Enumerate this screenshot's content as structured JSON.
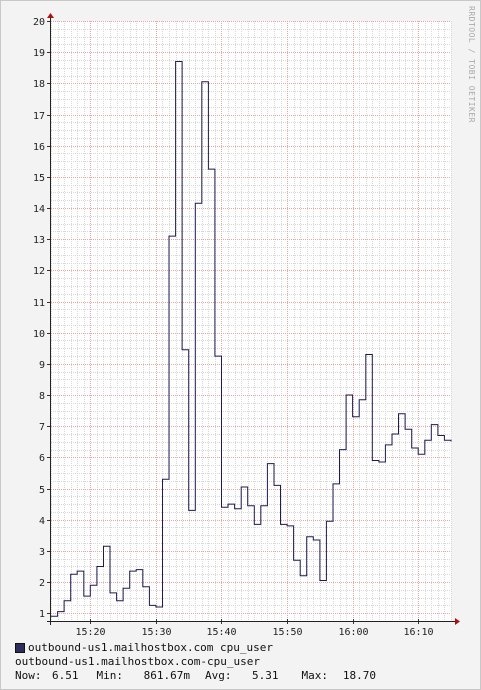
{
  "chart_data": {
    "type": "line",
    "title": "",
    "xlabel": "",
    "ylabel": "",
    "ylim": [
      0.75,
      20
    ],
    "yticks": [
      1,
      2,
      3,
      4,
      5,
      6,
      7,
      8,
      9,
      10,
      11,
      12,
      13,
      14,
      15,
      16,
      17,
      18,
      19,
      20
    ],
    "xlim": [
      "15:14",
      "16:15"
    ],
    "xticks": [
      {
        "t": "15:20",
        "label": "15:20"
      },
      {
        "t": "15:30",
        "label": "15:30"
      },
      {
        "t": "15:40",
        "label": "15:40"
      },
      {
        "t": "15:50",
        "label": "15:50"
      },
      {
        "t": "16:00",
        "label": "16:00"
      },
      {
        "t": "16:10",
        "label": "16:10"
      }
    ],
    "grid": true,
    "step": true,
    "line_color": "#1c1c50",
    "series": [
      {
        "name": "outbound-us1.mailhostbox.com cpu_user",
        "x": [
          "15:14",
          "15:15",
          "15:16",
          "15:17",
          "15:18",
          "15:19",
          "15:20",
          "15:21",
          "15:22",
          "15:23",
          "15:24",
          "15:25",
          "15:26",
          "15:27",
          "15:28",
          "15:29",
          "15:30",
          "15:31",
          "15:32",
          "15:33",
          "15:34",
          "15:35",
          "15:36",
          "15:37",
          "15:38",
          "15:39",
          "15:40",
          "15:41",
          "15:42",
          "15:43",
          "15:44",
          "15:45",
          "15:46",
          "15:47",
          "15:48",
          "15:49",
          "15:50",
          "15:51",
          "15:52",
          "15:53",
          "15:54",
          "15:55",
          "15:56",
          "15:57",
          "15:58",
          "15:59",
          "16:00",
          "16:01",
          "16:02",
          "16:03",
          "16:04",
          "16:05",
          "16:06",
          "16:07",
          "16:08",
          "16:09",
          "16:10",
          "16:11",
          "16:12",
          "16:13",
          "16:14",
          "16:15"
        ],
        "values": [
          0.9,
          1.05,
          1.4,
          2.25,
          2.35,
          1.55,
          1.9,
          2.5,
          3.15,
          1.65,
          1.4,
          1.8,
          2.35,
          2.4,
          1.85,
          1.25,
          1.2,
          5.3,
          13.1,
          18.7,
          9.45,
          4.3,
          14.15,
          18.05,
          15.25,
          9.25,
          4.4,
          4.5,
          4.35,
          5.05,
          4.45,
          3.85,
          4.45,
          5.8,
          5.1,
          3.85,
          3.8,
          2.7,
          2.2,
          3.45,
          3.35,
          2.05,
          3.95,
          5.15,
          6.25,
          8.0,
          7.3,
          7.85,
          9.3,
          5.9,
          5.85,
          6.4,
          6.75,
          7.4,
          6.9,
          6.3,
          6.1,
          6.55,
          7.05,
          6.7,
          6.55,
          6.51
        ]
      }
    ]
  },
  "watermark": "RRDTOOL / TOBI OETIKER",
  "legend": {
    "title": "outbound-us1.mailhostbox.com cpu_user",
    "name": "outbound-us1.mailhostbox.com-cpu_user",
    "now_label": "Now:",
    "now_value": "6.51",
    "min_label": "Min:",
    "min_value": "861.67m",
    "avg_label": "Avg:",
    "avg_value": "5.31",
    "max_label": "Max:",
    "max_value": "18.70"
  }
}
